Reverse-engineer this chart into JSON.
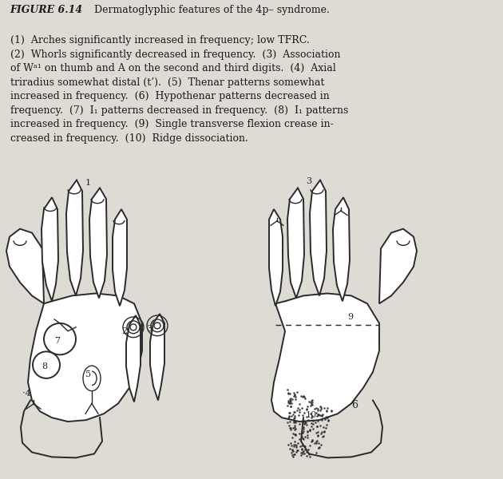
{
  "bg_color": "#dedad4",
  "line_color": "#2a2a2a",
  "text_color": "#1a1a1a",
  "fig_label": "FIGURE 6.14",
  "caption_lines": [
    "   Dermatoglyphic features of the 4p– syndrome.",
    "(1)  Arches significantly increased in frequency; low TFRC.",
    "(2)  Whorls significantly decreased in frequency.  (3)  Association",
    "of Wᵃ¹ on thumb and A on the second and third digits.  (4)  Axial",
    "triradius somewhat distal (t’).  (5)  Thenar patterns somewhat",
    "increased in frequency.  (6)  Hypothenar patterns decreased in",
    "frequency.  (7)  I₁ patterns decreased in frequency.  (8)  I₁ patterns",
    "increased in frequency.  (9)  Single transverse flexion crease in-",
    "creased in frequency.  (10)  Ridge dissociation."
  ]
}
